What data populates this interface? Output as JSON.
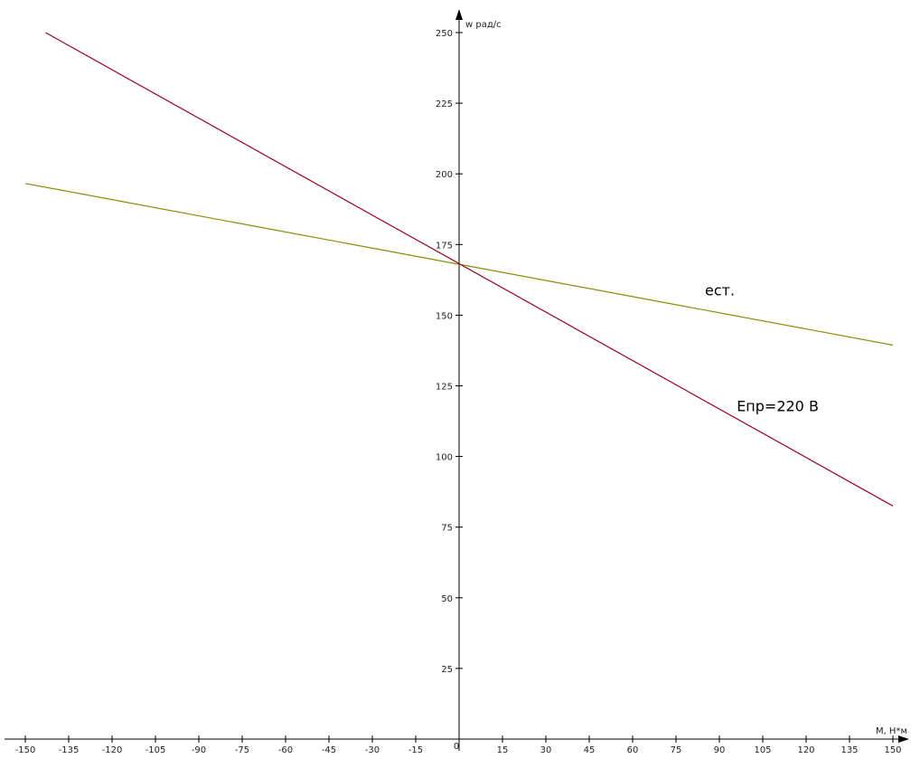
{
  "chart_data": {
    "type": "line",
    "title": "",
    "xlabel": "M, Н*м",
    "ylabel": "w рад/с",
    "xlim": [
      -150,
      150
    ],
    "ylim": [
      0,
      250
    ],
    "x_ticks": [
      -150,
      -135,
      -120,
      -105,
      -90,
      -75,
      -60,
      -45,
      -30,
      -15,
      0,
      15,
      30,
      45,
      60,
      75,
      90,
      105,
      120,
      135,
      150
    ],
    "y_ticks": [
      25,
      50,
      75,
      100,
      125,
      150,
      175,
      200,
      225,
      250
    ],
    "origin_label": "0",
    "grid": false,
    "legend": "none",
    "series": [
      {
        "name": "ест.",
        "color": "#8a8a00",
        "x": [
          -150,
          150
        ],
        "y": [
          196.6,
          139.4
        ]
      },
      {
        "name": "Епр=220 В",
        "color": "#9b0020",
        "x": [
          -143,
          150
        ],
        "y": [
          250,
          82.5
        ]
      }
    ]
  }
}
